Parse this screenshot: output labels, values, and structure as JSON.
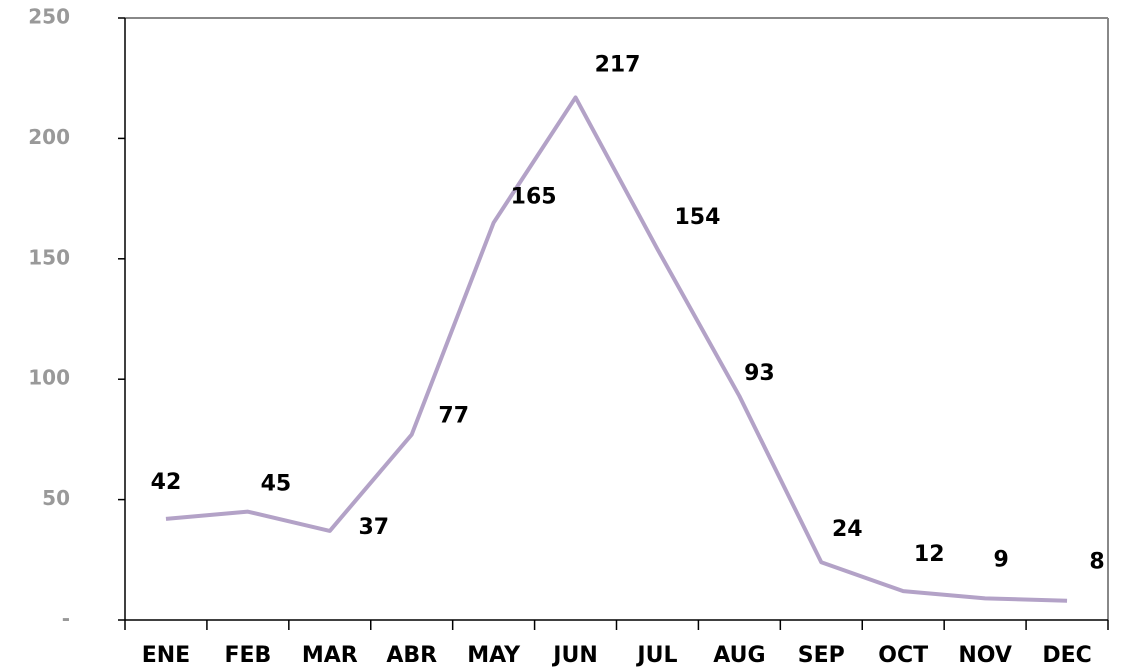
{
  "chart_data": {
    "type": "line",
    "categories": [
      "ENE",
      "FEB",
      "MAR",
      "ABR",
      "MAY",
      "JUN",
      "JUL",
      "AUG",
      "SEP",
      "OCT",
      "NOV",
      "DEC"
    ],
    "series": [
      {
        "color": "#b3a2c7",
        "values": [
          42,
          45,
          37,
          77,
          165,
          217,
          154,
          93,
          24,
          12,
          9,
          8
        ]
      }
    ],
    "ylim": [
      0,
      250
    ],
    "yticks": [
      {
        "value": 0,
        "label": "-"
      },
      50,
      100,
      150,
      200,
      250
    ],
    "grid": false
  }
}
